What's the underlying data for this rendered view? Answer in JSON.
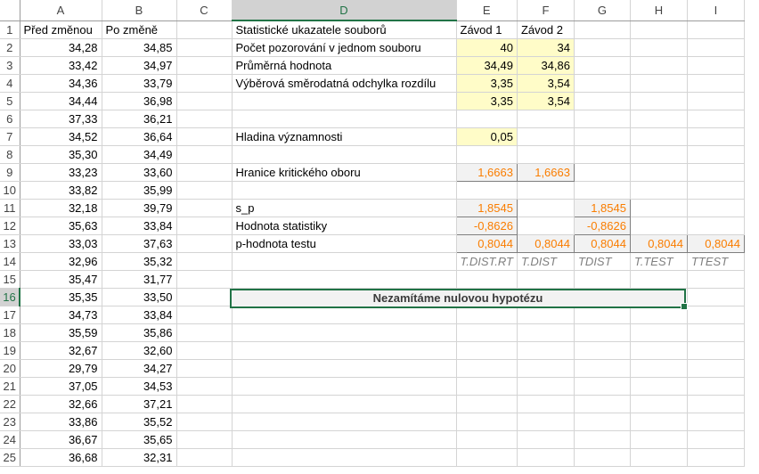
{
  "columns": [
    "A",
    "B",
    "C",
    "D",
    "E",
    "F",
    "G",
    "H",
    "I"
  ],
  "selected_column": "D",
  "selected_row": 16,
  "a": [
    "Před změnou",
    "34,28",
    "33,42",
    "34,36",
    "34,44",
    "37,33",
    "34,52",
    "35,30",
    "33,23",
    "33,82",
    "32,18",
    "35,63",
    "33,03",
    "32,96",
    "35,47",
    "35,35",
    "34,73",
    "35,59",
    "32,67",
    "29,79",
    "37,05",
    "32,66",
    "33,86",
    "36,67",
    "36,68"
  ],
  "b": [
    "Po změně",
    "34,85",
    "34,97",
    "33,79",
    "36,98",
    "36,21",
    "36,64",
    "34,49",
    "33,60",
    "35,99",
    "39,79",
    "33,84",
    "37,63",
    "35,32",
    "31,77",
    "33,50",
    "33,84",
    "35,86",
    "32,60",
    "34,27",
    "34,53",
    "37,21",
    "35,52",
    "35,65",
    "32,31"
  ],
  "stats": {
    "header": "Statistické ukazatele souborů",
    "zavod1": "Závod 1",
    "zavod2": "Závod 2",
    "count_label": "Počet pozorování v jednom souboru",
    "count1": "40",
    "count2": "34",
    "mean_label": "Průměrná hodnota",
    "mean1": "34,49",
    "mean2": "34,86",
    "sd_label": "Výběrová směrodatná odchylka rozdílu",
    "sd1": "3,35",
    "sd2": "3,54",
    "sd1b": "3,35",
    "sd2b": "3,54",
    "alpha_label": "Hladina významnosti",
    "alpha": "0,05",
    "crit_label": "Hranice kritického oboru",
    "crit1": "1,6663",
    "crit2": "1,6663",
    "sp_label": "s_p",
    "sp_e": "1,8545",
    "sp_g": "1,8545",
    "stat_label": "Hodnota statistiky",
    "stat_e": "-0,8626",
    "stat_g": "-0,8626",
    "p_label": "p-hodnota testu",
    "p_e": "0,8044",
    "p_f": "0,8044",
    "p_g": "0,8044",
    "p_h": "0,8044",
    "p_i": "0,8044",
    "fn_e": "T.DIST.RT",
    "fn_f": "T.DIST",
    "fn_g": "TDIST",
    "fn_h": "T.TEST",
    "fn_i": "TTEST"
  },
  "result": "Nezamítáme nulovou hypotézu"
}
